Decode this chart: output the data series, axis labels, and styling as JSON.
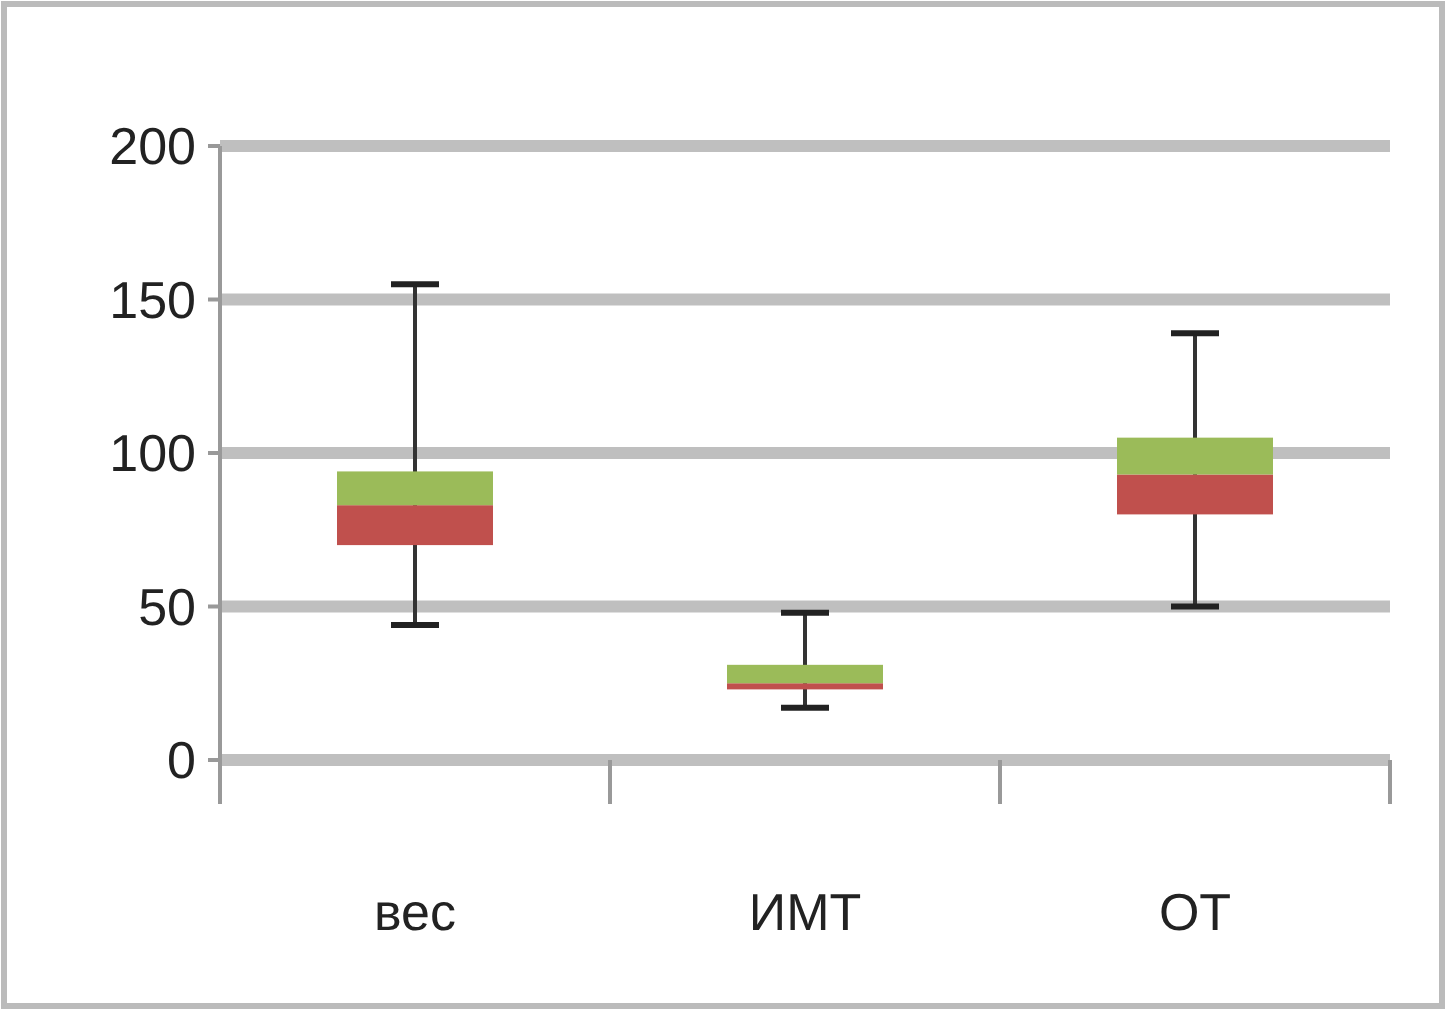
{
  "chart_data": {
    "type": "box",
    "categories": [
      "вес",
      "ИМТ",
      "ОТ"
    ],
    "boxes": [
      {
        "low": 44,
        "q1": 70,
        "median": 83,
        "q3": 94,
        "high": 155
      },
      {
        "low": 17,
        "q1": 23,
        "median": 25,
        "q3": 31,
        "high": 48
      },
      {
        "low": 50,
        "q1": 80,
        "median": 93,
        "q3": 105,
        "high": 139
      }
    ],
    "colors": [
      [
        "#c0504d",
        "#9bbb59"
      ],
      [
        "#c0504d",
        "#9bbb59"
      ],
      [
        "#c0504d",
        "#9bbb59"
      ]
    ],
    "ylim": [
      0,
      200
    ],
    "yticks": [
      0,
      50,
      100,
      150,
      200
    ],
    "grid": "y"
  }
}
